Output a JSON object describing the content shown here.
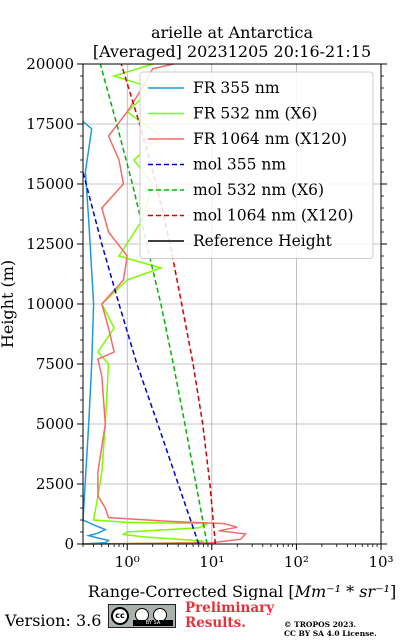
{
  "chart_data": {
    "type": "line",
    "title": "arielle at Antarctica",
    "subtitle": "[Averaged] 20231205 20:16-21:15",
    "xlabel_text": "Range-Corrected Signal [",
    "xlabel_unit": "Mm⁻¹ * sr⁻¹",
    "xlabel_close": "]",
    "ylabel": "Height (m)",
    "xscale": "log",
    "xlim": [
      0.3,
      1000
    ],
    "ylim": [
      0,
      20000
    ],
    "x_ticks": [
      1,
      10,
      100,
      1000
    ],
    "x_tick_labels": [
      "10⁰",
      "10¹",
      "10²",
      "10³"
    ],
    "y_ticks": [
      0,
      2500,
      5000,
      7500,
      10000,
      12500,
      15000,
      17500,
      20000
    ],
    "y_tick_labels": [
      "0",
      "2500",
      "5000",
      "7500",
      "10000",
      "12500",
      "15000",
      "17500",
      "20000"
    ],
    "grid": true,
    "legend_position": "top-right",
    "series": [
      {
        "name": "FR 355 nm",
        "color": "#1f9bd8",
        "style": "solid",
        "points": [
          [
            0.3,
            0
          ],
          [
            0.55,
            50
          ],
          [
            0.6,
            150
          ],
          [
            0.45,
            250
          ],
          [
            0.35,
            350
          ],
          [
            0.45,
            450
          ],
          [
            0.55,
            600
          ],
          [
            0.4,
            800
          ],
          [
            0.3,
            1000
          ],
          [
            0.35,
            5000
          ],
          [
            0.38,
            7500
          ],
          [
            0.4,
            10000
          ],
          [
            0.35,
            13500
          ],
          [
            0.32,
            15500
          ],
          [
            0.38,
            17300
          ],
          [
            0.3,
            17600
          ]
        ]
      },
      {
        "name": "FR 532 nm (X6)",
        "color": "#7cfc00",
        "style": "solid",
        "points": [
          [
            0.3,
            0
          ],
          [
            6.0,
            50
          ],
          [
            8.0,
            120
          ],
          [
            4.0,
            200
          ],
          [
            1.5,
            300
          ],
          [
            0.9,
            400
          ],
          [
            1.0,
            500
          ],
          [
            7.0,
            680
          ],
          [
            9.0,
            850
          ],
          [
            1.0,
            900
          ],
          [
            0.4,
            1000
          ],
          [
            0.45,
            2000
          ],
          [
            0.5,
            3000
          ],
          [
            0.55,
            5000
          ],
          [
            0.6,
            7500
          ],
          [
            0.45,
            8000
          ],
          [
            0.7,
            9000
          ],
          [
            0.5,
            10000
          ],
          [
            1.0,
            11000
          ],
          [
            2.5,
            11500
          ],
          [
            0.8,
            12000
          ],
          [
            1.5,
            13500
          ],
          [
            2.0,
            15000
          ],
          [
            1.2,
            16000
          ],
          [
            2.5,
            17000
          ],
          [
            1.0,
            18000
          ],
          [
            2.0,
            19000
          ],
          [
            0.7,
            19500
          ],
          [
            2.0,
            20000
          ]
        ]
      },
      {
        "name": "FR 1064 nm (X120)",
        "color": "#f36b6b",
        "style": "solid",
        "points": [
          [
            0.3,
            0
          ],
          [
            10.0,
            50
          ],
          [
            22.0,
            200
          ],
          [
            25.0,
            420
          ],
          [
            12.0,
            550
          ],
          [
            20.0,
            700
          ],
          [
            14.0,
            850
          ],
          [
            3.0,
            950
          ],
          [
            0.6,
            1100
          ],
          [
            0.55,
            1500
          ],
          [
            0.45,
            2000
          ],
          [
            0.45,
            3000
          ],
          [
            0.55,
            5000
          ],
          [
            0.5,
            7000
          ],
          [
            0.45,
            7700
          ],
          [
            0.7,
            8000
          ],
          [
            0.6,
            9000
          ],
          [
            0.5,
            10000
          ],
          [
            0.9,
            11000
          ],
          [
            1.0,
            12000
          ],
          [
            0.6,
            13000
          ],
          [
            0.5,
            14000
          ],
          [
            0.9,
            15000
          ],
          [
            0.8,
            16000
          ],
          [
            0.6,
            17000
          ],
          [
            1.0,
            18000
          ],
          [
            1.5,
            19000
          ],
          [
            2.0,
            19800
          ],
          [
            3.5,
            20000
          ]
        ]
      },
      {
        "name": "mol 355 nm",
        "color": "#0000cc",
        "style": "dashed",
        "points": [
          [
            7.0,
            0
          ],
          [
            4.0,
            2500
          ],
          [
            2.3,
            5000
          ],
          [
            1.3,
            7500
          ],
          [
            0.8,
            10000
          ],
          [
            0.5,
            12500
          ],
          [
            0.3,
            15500
          ]
        ]
      },
      {
        "name": "mol 532 nm (X6)",
        "color": "#00b300",
        "style": "dashed",
        "points": [
          [
            8.8,
            0
          ],
          [
            6.5,
            2500
          ],
          [
            4.8,
            5000
          ],
          [
            3.5,
            7500
          ],
          [
            2.5,
            10000
          ],
          [
            1.7,
            12500
          ],
          [
            1.15,
            15000
          ],
          [
            0.75,
            17500
          ],
          [
            0.48,
            20000
          ]
        ]
      },
      {
        "name": "mol 1064 nm (X120)",
        "color": "#d40000",
        "style": "dashed",
        "points": [
          [
            11.0,
            0
          ],
          [
            9.5,
            2500
          ],
          [
            7.8,
            5000
          ],
          [
            6.0,
            7500
          ],
          [
            4.4,
            10000
          ],
          [
            3.2,
            12500
          ],
          [
            2.2,
            15000
          ],
          [
            1.4,
            17500
          ],
          [
            0.85,
            20000
          ]
        ]
      },
      {
        "name": "Reference Height",
        "color": "#000000",
        "style": "solid",
        "points": []
      }
    ]
  },
  "footer": {
    "version": "Version: 3.6",
    "license_badge_cc": "cc",
    "license_badge_text": "BY  SA",
    "preliminary_line1": "Preliminary",
    "preliminary_line2": "Results.",
    "copyright_line1": "© TROPOS 2023.",
    "copyright_line2": "CC BY SA 4.0 License."
  }
}
